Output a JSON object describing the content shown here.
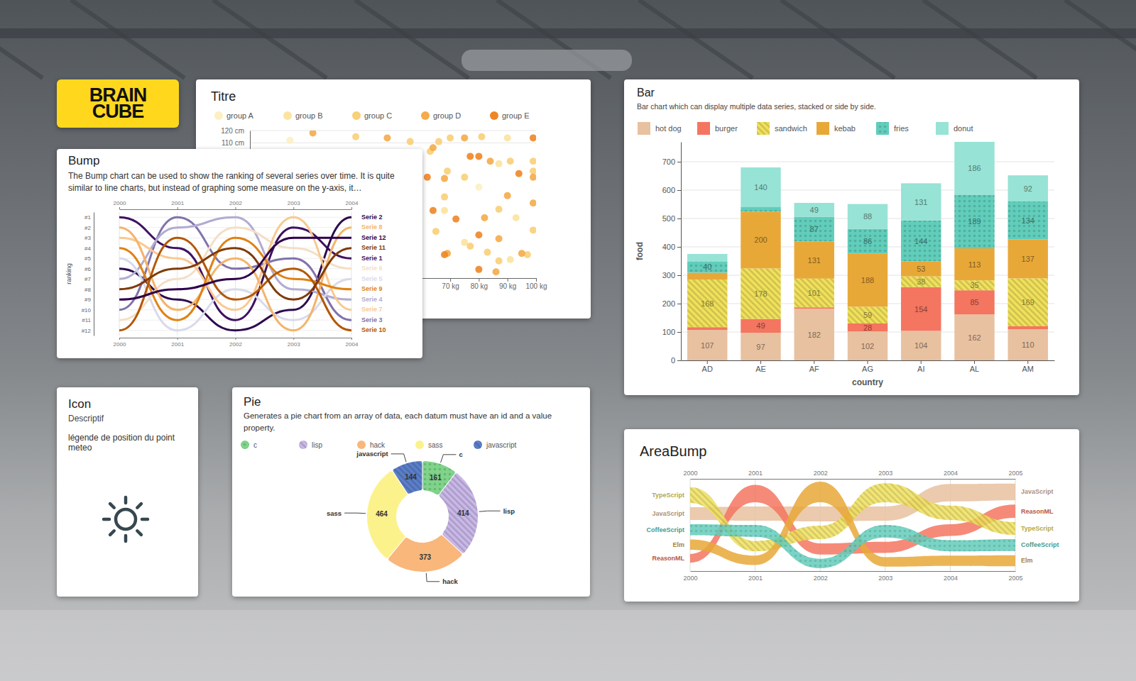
{
  "logo": {
    "lines": [
      "BRAIN",
      "CUBE"
    ]
  },
  "icon_card": {
    "title": "Icon",
    "subtitle": "Descriptif",
    "text": "légende de position du point meteo"
  },
  "chart_data": [
    {
      "type": "scatter",
      "title": "Titre",
      "legend": "top",
      "grid": true,
      "xlim": [
        0,
        100
      ],
      "ylim": [
        0,
        120
      ],
      "xticks": [
        {
          "value": 70,
          "label": "70 kg"
        },
        {
          "value": 80,
          "label": "80 kg"
        },
        {
          "value": 90,
          "label": "90 kg"
        },
        {
          "value": 100,
          "label": "100 kg"
        }
      ],
      "yticks": [
        {
          "value": 110,
          "label": "110 cm"
        },
        {
          "value": 120,
          "label": "120 cm"
        }
      ],
      "series": [
        {
          "name": "group A",
          "color": "#fcefc2",
          "x": [
            14,
            80
          ],
          "values": [
            112,
            74
          ]
        },
        {
          "name": "group B",
          "color": "#fbe3a0",
          "x": [
            90,
            87,
            68,
            93,
            75,
            91
          ],
          "values": [
            114,
            93,
            55,
            49,
            29,
            15
          ]
        },
        {
          "name": "group C",
          "color": "#f9cf78",
          "x": [
            37,
            56,
            66,
            70,
            81,
            63,
            91,
            99,
            69,
            75,
            99,
            68,
            87,
            65,
            99,
            83,
            87,
            97,
            77
          ],
          "values": [
            115,
            111,
            111,
            114,
            115,
            103,
            95,
            95,
            87,
            82,
            87,
            66,
            56,
            38,
            39,
            21,
            14,
            19,
            26
          ]
        },
        {
          "name": "group D",
          "color": "#f4ab4a",
          "x": [
            22,
            48,
            64,
            75,
            84,
            68,
            99,
            90,
            99,
            82,
            87,
            69,
            95,
            86
          ],
          "values": [
            118,
            114,
            106,
            114,
            95,
            81,
            82,
            67,
            61,
            49,
            32,
            20,
            20,
            5
          ]
        },
        {
          "name": "group E",
          "color": "#ee8626",
          "x": [
            99,
            77,
            80,
            62,
            94,
            64,
            72,
            80,
            68,
            80
          ],
          "values": [
            114,
            99,
            99,
            82,
            85,
            55,
            48,
            35,
            19,
            7
          ]
        }
      ]
    },
    {
      "type": "bump",
      "title": "Bump",
      "subtitle": "The Bump chart can be used to show the ranking of several series over time. It is quite similar to line charts, but instead of graphing some measure on the y-axis, it…",
      "ylabel": "ranking",
      "grid": true,
      "x": [
        2000,
        2001,
        2002,
        2003,
        2004
      ],
      "xlim": [
        2000,
        2004
      ],
      "xticks": [
        2000,
        2001,
        2002,
        2003,
        2004
      ],
      "ylim": [
        12.5,
        0.5
      ],
      "yticks": [
        {
          "value": 1,
          "label": "#1"
        },
        {
          "value": 2,
          "label": "#2"
        },
        {
          "value": 3,
          "label": "#3"
        },
        {
          "value": 4,
          "label": "#4"
        },
        {
          "value": 5,
          "label": "#5"
        },
        {
          "value": 6,
          "label": "#6"
        },
        {
          "value": 7,
          "label": "#7"
        },
        {
          "value": 8,
          "label": "#8"
        },
        {
          "value": 9,
          "label": "#9"
        },
        {
          "value": 10,
          "label": "#10"
        },
        {
          "value": 11,
          "label": "#11"
        },
        {
          "value": 12,
          "label": "#12"
        }
      ],
      "series": [
        {
          "name": "Serie 1",
          "color": "#3f1161",
          "values": [
            1,
            4,
            11,
            2,
            5
          ]
        },
        {
          "name": "Serie 2",
          "color": "#2d0a4e",
          "values": [
            6,
            9,
            12,
            10,
            1
          ]
        },
        {
          "name": "Serie 3",
          "color": "#8073ac",
          "values": [
            10,
            1,
            6,
            5,
            11
          ]
        },
        {
          "name": "Serie 4",
          "color": "#b2abd2",
          "values": [
            7,
            2,
            1,
            8,
            9
          ]
        },
        {
          "name": "Serie 5",
          "color": "#d8daeb",
          "values": [
            5,
            12,
            8,
            11,
            7
          ]
        },
        {
          "name": "Serie 6",
          "color": "#f3dfc6",
          "values": [
            11,
            7,
            2,
            4,
            6
          ]
        },
        {
          "name": "Serie 7",
          "color": "#f9c98f",
          "values": [
            3,
            5,
            10,
            1,
            10
          ]
        },
        {
          "name": "Serie 8",
          "color": "#f4b46a",
          "values": [
            2,
            10,
            5,
            12,
            2
          ]
        },
        {
          "name": "Serie 9",
          "color": "#e08214",
          "values": [
            4,
            11,
            3,
            7,
            8
          ]
        },
        {
          "name": "Serie 10",
          "color": "#b35806",
          "values": [
            12,
            3,
            9,
            6,
            12
          ]
        },
        {
          "name": "Serie 11",
          "color": "#7f3b08",
          "values": [
            8,
            6,
            4,
            9,
            4
          ]
        },
        {
          "name": "Serie 12",
          "color": "#2d004b",
          "values": [
            9,
            8,
            7,
            3,
            3
          ]
        }
      ]
    },
    {
      "type": "bar",
      "title": "Bar",
      "subtitle": "Bar chart which can display multiple data series, stacked or side by side.",
      "stacked": true,
      "legend": "top",
      "data_labels": true,
      "grid": true,
      "xlabel": "country",
      "ylabel": "food",
      "categories": [
        "AD",
        "AE",
        "AF",
        "AG",
        "AI",
        "AL",
        "AM"
      ],
      "ylim": [
        0,
        770
      ],
      "yticks": [
        0,
        100,
        200,
        300,
        400,
        500,
        600,
        700
      ],
      "series": [
        {
          "name": "hot dog",
          "color": "#e8c1a0",
          "values": [
            107,
            97,
            182,
            102,
            104,
            162,
            110
          ]
        },
        {
          "name": "burger",
          "color": "#f47560",
          "values": [
            10,
            49,
            5,
            28,
            154,
            85,
            10
          ]
        },
        {
          "name": "sandwich",
          "color": "#f1e15b",
          "values": [
            168,
            178,
            101,
            59,
            38,
            35,
            169
          ]
        },
        {
          "name": "kebab",
          "color": "#e8a838",
          "values": [
            24,
            200,
            131,
            188,
            53,
            113,
            137
          ]
        },
        {
          "name": "fries",
          "color": "#61cdbb",
          "values": [
            40,
            16,
            87,
            86,
            144,
            189,
            134
          ]
        },
        {
          "name": "donut",
          "color": "#97e3d5",
          "values": [
            26,
            140,
            49,
            88,
            131,
            186,
            92
          ]
        }
      ]
    },
    {
      "type": "pie",
      "title": "Pie",
      "subtitle": "Generates a pie chart from an array of data, each datum must have an id and a value property.",
      "legend": "top",
      "data_labels": true,
      "categories": [
        "c",
        "lisp",
        "hack",
        "sass",
        "javascript"
      ],
      "values": [
        161,
        414,
        373,
        464,
        144
      ],
      "colors": [
        "#7fd48a",
        "#c9b8e8",
        "#f9b77c",
        "#fbf28c",
        "#5b7fca"
      ]
    },
    {
      "type": "area_bump",
      "title": "AreaBump",
      "grid": true,
      "x": [
        2000,
        2001,
        2002,
        2003,
        2004,
        2005
      ],
      "xlim": [
        2000,
        2005
      ],
      "xticks": [
        2000,
        2001,
        2002,
        2003,
        2004,
        2005
      ],
      "series": [
        {
          "name": "JavaScript",
          "color": "#e8c1a0",
          "values": [
            16,
            18,
            19,
            18,
            22,
            21
          ]
        },
        {
          "name": "ReasonML",
          "color": "#f47560",
          "values": [
            11,
            22,
            14,
            14,
            15,
            17
          ]
        },
        {
          "name": "TypeScript",
          "color": "#f1e15b",
          "values": [
            20,
            13,
            17,
            24,
            18,
            16
          ]
        },
        {
          "name": "Elm",
          "color": "#e8a838",
          "values": [
            13,
            12,
            26,
            12,
            13,
            14
          ]
        },
        {
          "name": "CoffeeScript",
          "color": "#61cdbb",
          "values": [
            14,
            15,
            12,
            16,
            14,
            15
          ]
        }
      ]
    }
  ]
}
